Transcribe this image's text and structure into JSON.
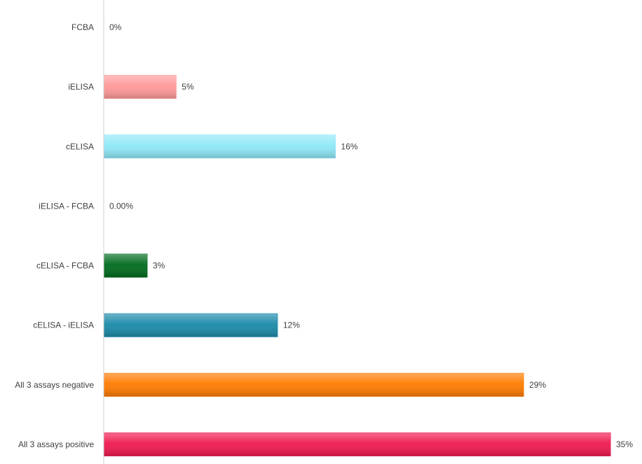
{
  "chart_data": {
    "type": "bar",
    "orientation": "horizontal",
    "categories": [
      "FCBA",
      "iELISA",
      "cELISA",
      "iELISA - FCBA",
      "cELISA - FCBA",
      "cELISA - iELISA",
      "All 3 assays negative",
      "All 3 assays positive"
    ],
    "values": [
      0,
      5,
      16,
      0,
      3,
      12,
      29,
      35
    ],
    "data_labels": [
      "0%",
      "5%",
      "16%",
      "0.00%",
      "3%",
      "12%",
      "29%",
      "35%"
    ],
    "colors": [
      "#f2f2f2",
      "#ff9999",
      "#8fe8f7",
      "#d9d9d9",
      "#006b1e",
      "#1a8aa8",
      "#ff7b00",
      "#ef1a4f"
    ],
    "xlim": [
      0,
      35
    ],
    "grid": false,
    "legend": "none"
  }
}
